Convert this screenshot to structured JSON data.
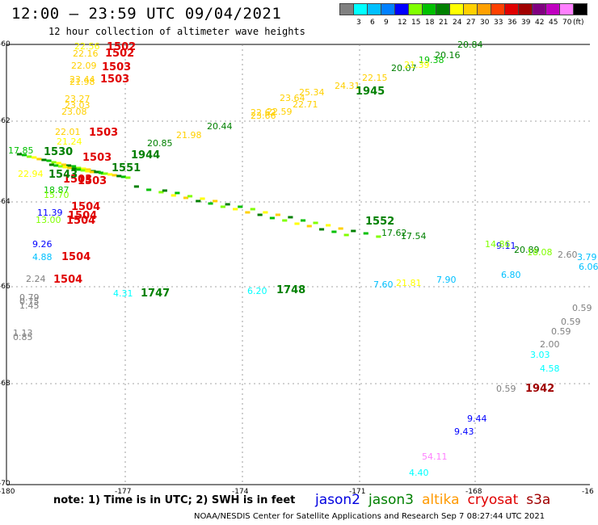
{
  "header": {
    "title": "12:00 — 23:59 UTC 09/04/2021",
    "subtitle": "12 hour collection of altimeter wave heights"
  },
  "legend": {
    "swatches": [
      {
        "color": "#808080",
        "label": ""
      },
      {
        "color": "#00ffff",
        "label": "3"
      },
      {
        "color": "#00c0ff",
        "label": "6"
      },
      {
        "color": "#0080ff",
        "label": "9"
      },
      {
        "color": "#0000ff",
        "label": "12"
      },
      {
        "color": "#80ff00",
        "label": "15"
      },
      {
        "color": "#00c000",
        "label": "18"
      },
      {
        "color": "#008000",
        "label": "21"
      },
      {
        "color": "#ffff00",
        "label": "24"
      },
      {
        "color": "#ffd000",
        "label": "27"
      },
      {
        "color": "#ffa000",
        "label": "30"
      },
      {
        "color": "#ff4000",
        "label": "33"
      },
      {
        "color": "#e00000",
        "label": "36"
      },
      {
        "color": "#a00000",
        "label": "39"
      },
      {
        "color": "#800080",
        "label": "42"
      },
      {
        "color": "#c000c0",
        "label": "45"
      },
      {
        "color": "#ff80ff",
        "label": "70"
      },
      {
        "color": "#000000",
        "label": "(ft)"
      }
    ]
  },
  "axes": {
    "x_ticks": [
      "-180",
      "-177",
      "-174",
      "-171",
      "-168",
      "-16"
    ],
    "y_ticks": [
      "-60",
      "-62",
      "-64",
      "-66",
      "-68",
      "-70"
    ]
  },
  "observations": [
    {
      "t": "22.56",
      "c": "#ffff00"
    },
    {
      "t": "22.16",
      "c": "#ffd000"
    },
    {
      "t": "22.09",
      "c": "#ffd000"
    },
    {
      "t": "21.98",
      "c": "#ffd000"
    },
    {
      "t": "23.44",
      "c": "#ffd000"
    },
    {
      "t": "23.27",
      "c": "#ffd000"
    },
    {
      "t": "23.03",
      "c": "#ffd000"
    },
    {
      "t": "23.08",
      "c": "#ffd000"
    },
    {
      "t": "22.01",
      "c": "#ffd000"
    },
    {
      "t": "21.24",
      "c": "#ffff00"
    },
    {
      "t": "17.85",
      "c": "#00c000"
    },
    {
      "t": "22.94",
      "c": "#ffff00"
    },
    {
      "t": "18.87",
      "c": "#00c000"
    },
    {
      "t": "15.70",
      "c": "#80ff00"
    },
    {
      "t": "11.39",
      "c": "#0000ff"
    },
    {
      "t": "13.00",
      "c": "#80ff00"
    },
    {
      "t": "9.26",
      "c": "#0000ff"
    },
    {
      "t": "4.88",
      "c": "#00c0ff"
    },
    {
      "t": "2.24",
      "c": "#808080"
    },
    {
      "t": "0.79",
      "c": "#808080"
    },
    {
      "t": "0.75",
      "c": "#808080"
    },
    {
      "t": "1.45",
      "c": "#808080"
    },
    {
      "t": "1.13",
      "c": "#808080"
    },
    {
      "t": "0.85",
      "c": "#808080"
    },
    {
      "t": "4.31",
      "c": "#00ffff"
    },
    {
      "t": "6.20",
      "c": "#00ffff"
    },
    {
      "t": "20.85",
      "c": "#008000"
    },
    {
      "t": "20.44",
      "c": "#008000"
    },
    {
      "t": "21.98",
      "c": "#ffd000"
    },
    {
      "t": "22.59",
      "c": "#ffd000"
    },
    {
      "t": "20.84",
      "c": "#008000"
    },
    {
      "t": "20.16",
      "c": "#008000"
    },
    {
      "t": "19.38",
      "c": "#00c000"
    },
    {
      "t": "20.07",
      "c": "#008000"
    },
    {
      "t": "21.39",
      "c": "#ffff00"
    },
    {
      "t": "22.15",
      "c": "#ffd000"
    },
    {
      "t": "24.31",
      "c": "#ffd000"
    },
    {
      "t": "25.34",
      "c": "#ffd000"
    },
    {
      "t": "23.64",
      "c": "#ffd000"
    },
    {
      "t": "22.71",
      "c": "#ffd000"
    },
    {
      "t": "22.62",
      "c": "#ffd000"
    },
    {
      "t": "23.66",
      "c": "#ffd000"
    },
    {
      "t": "7.60",
      "c": "#00c0ff"
    },
    {
      "t": "21.81",
      "c": "#ffff00"
    },
    {
      "t": "7.90",
      "c": "#00c0ff"
    },
    {
      "t": "6.80",
      "c": "#00c0ff"
    },
    {
      "t": "9.11",
      "c": "#0000ff"
    },
    {
      "t": "20.89",
      "c": "#008000"
    },
    {
      "t": "18.08",
      "c": "#80ff00"
    },
    {
      "t": "2.60",
      "c": "#808080"
    },
    {
      "t": "3.79",
      "c": "#00c0ff"
    },
    {
      "t": "6.06",
      "c": "#00c0ff"
    },
    {
      "t": "0.59",
      "c": "#808080"
    },
    {
      "t": "0.59",
      "c": "#808080"
    },
    {
      "t": "0.59",
      "c": "#808080"
    },
    {
      "t": "2.00",
      "c": "#808080"
    },
    {
      "t": "3.03",
      "c": "#00ffff"
    },
    {
      "t": "4.58",
      "c": "#00ffff"
    },
    {
      "t": "0.59",
      "c": "#808080"
    },
    {
      "t": "9.44",
      "c": "#0000ff"
    },
    {
      "t": "9.43",
      "c": "#0000ff"
    },
    {
      "t": "54.11",
      "c": "#ff80ff"
    },
    {
      "t": "4.40",
      "c": "#00ffff"
    },
    {
      "t": "17.54",
      "c": "#008000"
    },
    {
      "t": "14.86",
      "c": "#80ff00"
    },
    {
      "t": "17.62",
      "c": "#008000"
    }
  ],
  "markers": [
    {
      "t": "1502",
      "c": "#e00000"
    },
    {
      "t": "1502",
      "c": "#e00000"
    },
    {
      "t": "1503",
      "c": "#e00000"
    },
    {
      "t": "1503",
      "c": "#e00000"
    },
    {
      "t": "1503",
      "c": "#e00000"
    },
    {
      "t": "1503",
      "c": "#e00000"
    },
    {
      "t": "1503",
      "c": "#e00000"
    },
    {
      "t": "1503",
      "c": "#e00000"
    },
    {
      "t": "1504",
      "c": "#e00000"
    },
    {
      "t": "1504",
      "c": "#e00000"
    },
    {
      "t": "1504",
      "c": "#e00000"
    },
    {
      "t": "1504",
      "c": "#e00000"
    },
    {
      "t": "1504",
      "c": "#e00000"
    },
    {
      "t": "1530",
      "c": "#008000"
    },
    {
      "t": "1944",
      "c": "#008000"
    },
    {
      "t": "1551",
      "c": "#008000"
    },
    {
      "t": "1543",
      "c": "#008000"
    },
    {
      "t": "1747",
      "c": "#008000"
    },
    {
      "t": "1748",
      "c": "#008000"
    },
    {
      "t": "1945",
      "c": "#008000"
    },
    {
      "t": "1552",
      "c": "#008000"
    },
    {
      "t": "1942",
      "c": "#a00000"
    }
  ],
  "note": "note: 1) Time is in UTC; 2) SWH is in feet",
  "satellites": [
    {
      "name": "jason2",
      "color": "#0000e0"
    },
    {
      "name": "jason3",
      "color": "#008000"
    },
    {
      "name": "altika",
      "color": "#ff9900"
    },
    {
      "name": "cryosat",
      "color": "#e00000"
    },
    {
      "name": "s3a",
      "color": "#a00000"
    }
  ],
  "footer": "NOAA/NESDIS Center for Satellite Applications and Research   Sep  7 08:27:44 UTC 2021"
}
